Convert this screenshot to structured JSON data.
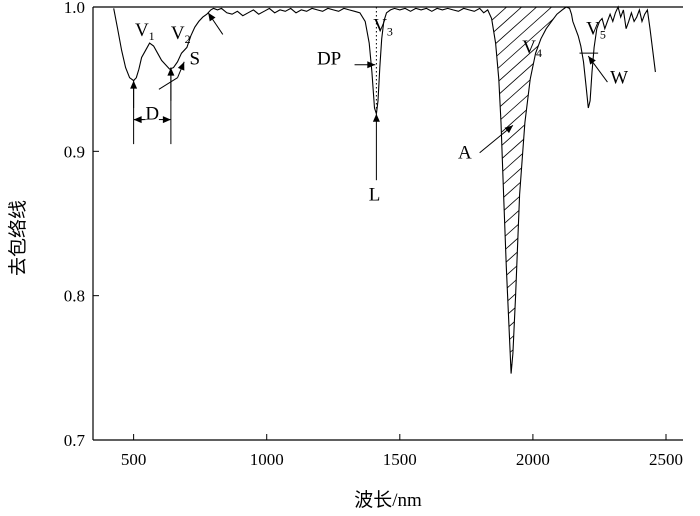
{
  "chart_data": {
    "type": "line",
    "xlabel": "波长/nm",
    "ylabel": "去包络线",
    "xlim": [
      400,
      2500
    ],
    "ylim": [
      0.7,
      1.0
    ],
    "xticks": [
      500,
      1000,
      1500,
      2000,
      2500
    ],
    "yticks": [
      0.7,
      0.8,
      0.9,
      1.0
    ],
    "xtick_labels": [
      "500",
      "1000",
      "1500",
      "2000",
      "2500"
    ],
    "ytick_labels": [
      "0.7",
      "0.8",
      "0.9",
      "1.0"
    ],
    "grid": false,
    "series": [
      {
        "x": [
          425,
          440,
          455,
          470,
          485,
          500,
          510,
          520,
          530,
          545,
          560,
          575,
          590,
          605,
          620,
          635,
          650,
          665,
          680,
          700,
          715,
          730,
          745,
          760,
          775,
          790,
          800,
          815,
          830,
          850,
          870,
          890,
          910,
          930,
          950,
          970,
          990,
          1010,
          1030,
          1050,
          1070,
          1090,
          1110,
          1130,
          1150,
          1170,
          1190,
          1210,
          1230,
          1250,
          1270,
          1290,
          1310,
          1330,
          1350,
          1370,
          1385,
          1395,
          1405,
          1412,
          1418,
          1425,
          1432,
          1440,
          1450,
          1465,
          1480,
          1500,
          1520,
          1540,
          1560,
          1580,
          1600,
          1620,
          1640,
          1660,
          1680,
          1700,
          1720,
          1740,
          1760,
          1780,
          1800,
          1815,
          1830,
          1845,
          1860,
          1872,
          1880,
          1890,
          1900,
          1910,
          1918,
          1925,
          1935,
          1950,
          1970,
          1990,
          2010,
          2030,
          2050,
          2070,
          2090,
          2110,
          2125,
          2138,
          2145,
          2150,
          2160,
          2170,
          2180,
          2190,
          2200,
          2208,
          2215,
          2222,
          2230,
          2240,
          2250,
          2260,
          2270,
          2280,
          2290,
          2300,
          2310,
          2320,
          2330,
          2340,
          2350,
          2360,
          2370,
          2380,
          2390,
          2400,
          2410,
          2420,
          2430,
          2440,
          2450,
          2460
        ],
        "y": [
          0.999,
          0.985,
          0.97,
          0.958,
          0.951,
          0.949,
          0.951,
          0.957,
          0.965,
          0.97,
          0.975,
          0.973,
          0.968,
          0.963,
          0.96,
          0.957,
          0.958,
          0.962,
          0.968,
          0.972,
          0.98,
          0.986,
          0.99,
          0.993,
          0.995,
          0.998,
          0.999,
          0.998,
          0.999,
          0.996,
          0.995,
          0.997,
          0.994,
          0.996,
          0.998,
          0.995,
          0.997,
          0.999,
          0.996,
          0.998,
          0.997,
          0.999,
          0.996,
          0.998,
          0.997,
          0.999,
          0.998,
          0.997,
          0.999,
          0.998,
          0.997,
          0.999,
          0.998,
          0.997,
          0.996,
          0.99,
          0.975,
          0.955,
          0.93,
          0.926,
          0.935,
          0.958,
          0.978,
          0.99,
          0.996,
          0.998,
          0.999,
          0.998,
          0.999,
          0.997,
          0.999,
          0.998,
          0.999,
          0.997,
          0.999,
          0.998,
          0.999,
          0.998,
          0.997,
          0.999,
          0.998,
          0.997,
          0.999,
          0.996,
          0.998,
          0.992,
          0.975,
          0.95,
          0.92,
          0.87,
          0.82,
          0.78,
          0.746,
          0.76,
          0.8,
          0.87,
          0.92,
          0.95,
          0.968,
          0.978,
          0.985,
          0.99,
          0.995,
          0.998,
          1.0,
          0.999,
          0.995,
          0.99,
          0.985,
          0.98,
          0.973,
          0.962,
          0.945,
          0.93,
          0.935,
          0.955,
          0.972,
          0.985,
          0.99,
          0.992,
          0.985,
          0.99,
          0.995,
          0.99,
          0.996,
          1.0,
          0.993,
          0.998,
          0.985,
          0.99,
          0.996,
          0.99,
          0.993,
          0.998,
          0.99,
          0.995,
          0.998,
          0.985,
          0.97,
          0.955
        ]
      }
    ],
    "annotations": {
      "v1": {
        "letter": "V",
        "sub": "1",
        "x": 505,
        "y": 0.98
      },
      "v2": {
        "letter": "V",
        "sub": "2",
        "x": 640,
        "y": 0.978
      },
      "v3": {
        "letter": "V",
        "sub": "3",
        "x": 1400,
        "y": 0.983
      },
      "v4": {
        "letter": "V",
        "sub": "4",
        "x": 1960,
        "y": 0.968
      },
      "v5": {
        "letter": "V",
        "sub": "5",
        "x": 2200,
        "y": 0.981
      },
      "d": {
        "label": "D",
        "x": 570,
        "y": 0.922
      },
      "s": {
        "label": "S",
        "x": 710,
        "y": 0.96
      },
      "dp": {
        "label": "DP",
        "x": 1280,
        "y": 0.96
      },
      "l": {
        "label": "L",
        "x": 1405,
        "y": 0.866
      },
      "a": {
        "label": "A",
        "x": 1770,
        "y": 0.895
      },
      "w": {
        "label": "W",
        "x": 2290,
        "y": 0.947
      }
    }
  }
}
